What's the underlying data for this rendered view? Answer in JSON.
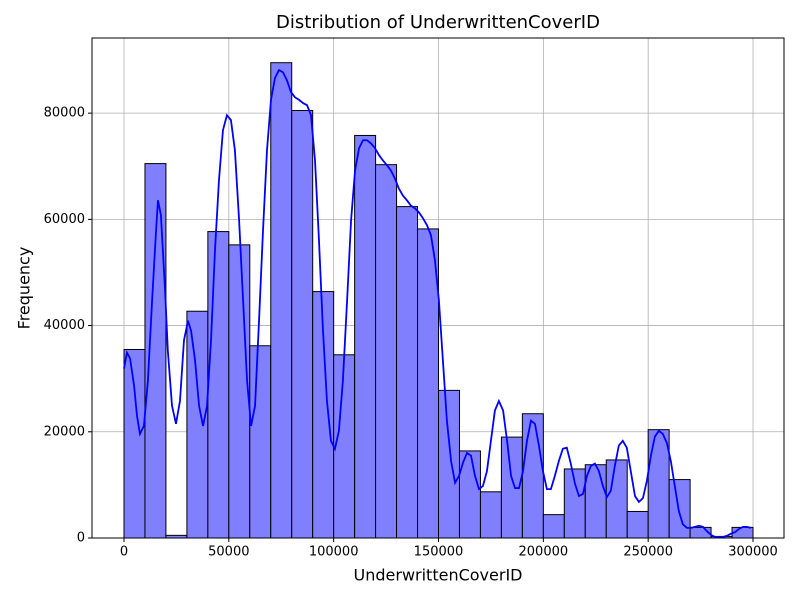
{
  "chart_data": {
    "type": "histogram",
    "title": "Distribution of UnderwrittenCoverID",
    "x_label": "UnderwrittenCoverID",
    "y_label": "Frequency",
    "bins": [
      0,
      10000,
      20000,
      30000,
      40000,
      50000,
      60000,
      70000,
      80000,
      90000,
      100000,
      110000,
      120000,
      130000,
      140000,
      150000,
      160000,
      170000,
      180000,
      190000,
      200000,
      210000,
      220000,
      230000,
      240000,
      250000,
      260000,
      270000,
      280000,
      290000,
      300000
    ],
    "counts": [
      35500,
      70500,
      500,
      42700,
      57700,
      55200,
      36200,
      89500,
      80500,
      46400,
      34500,
      75800,
      70300,
      62400,
      58200,
      27800,
      16400,
      8700,
      19000,
      23400,
      4400,
      13000,
      13800,
      14700,
      5000,
      20400,
      11000,
      2000,
      300,
      2000
    ],
    "color": "#8080ff",
    "edgecolor": "#000000",
    "kde": {
      "color": "#0000ff",
      "x": [
        0,
        1400,
        2900,
        4800,
        6200,
        7600,
        9500,
        11400,
        13400,
        15300,
        16200,
        17600,
        19600,
        20900,
        22900,
        24800,
        26700,
        28600,
        30500,
        32000,
        33900,
        35800,
        37700,
        39600,
        41500,
        43400,
        45300,
        47200,
        49100,
        51000,
        52900,
        54900,
        56800,
        58700,
        60600,
        62500,
        64400,
        66300,
        68200,
        70100,
        72000,
        73900,
        75800,
        77700,
        79600,
        81500,
        83500,
        85400,
        87300,
        89200,
        91100,
        93000,
        94900,
        96800,
        98700,
        100600,
        102500,
        104400,
        106400,
        108300,
        110200,
        112100,
        114000,
        115900,
        117800,
        119700,
        121600,
        123500,
        125400,
        127300,
        129200,
        131100,
        133000,
        134900,
        136800,
        138700,
        140700,
        142600,
        144500,
        146400,
        148300,
        150200,
        152100,
        154000,
        156000,
        157900,
        159800,
        161700,
        163600,
        165500,
        167400,
        169300,
        171200,
        173100,
        175000,
        176900,
        178800,
        180800,
        182700,
        184600,
        186500,
        188400,
        190300,
        192200,
        194100,
        196000,
        197900,
        199800,
        201700,
        203600,
        205500,
        207400,
        209300,
        211200,
        213100,
        215100,
        217000,
        218900,
        220800,
        222700,
        224600,
        226500,
        228400,
        230300,
        232200,
        234100,
        236000,
        237900,
        239800,
        241700,
        243700,
        245600,
        247500,
        249400,
        251300,
        253200,
        255100,
        257000,
        258900,
        260800,
        262700,
        264600,
        266500,
        268500,
        270400,
        272300,
        274200,
        276100,
        278000,
        279900,
        281800,
        283700,
        285600,
        287500,
        289400,
        291400,
        293300,
        295200,
        297100,
        299000
      ],
      "y": [
        31900,
        34900,
        33800,
        28700,
        23000,
        19600,
        21100,
        29600,
        44700,
        57900,
        63600,
        60800,
        46600,
        35300,
        24900,
        21500,
        25800,
        37200,
        40900,
        39000,
        33400,
        24900,
        21100,
        24900,
        37200,
        54200,
        67400,
        76800,
        79600,
        78700,
        73000,
        59800,
        44700,
        29600,
        21100,
        24900,
        40900,
        57900,
        73000,
        82500,
        86600,
        88100,
        87700,
        86200,
        84000,
        83000,
        82500,
        81900,
        81500,
        79600,
        71100,
        56000,
        39100,
        25800,
        18300,
        16800,
        20200,
        29600,
        44700,
        59800,
        69200,
        73400,
        74900,
        74900,
        74300,
        73400,
        72100,
        71100,
        70200,
        69200,
        67700,
        65800,
        64500,
        63600,
        62600,
        62100,
        61300,
        60200,
        58900,
        57000,
        52300,
        44700,
        33400,
        22100,
        14500,
        10400,
        11700,
        14200,
        16000,
        15500,
        11700,
        9200,
        9800,
        12600,
        18300,
        24000,
        25800,
        24000,
        18300,
        11700,
        9400,
        9400,
        12600,
        18300,
        22100,
        21500,
        17400,
        12600,
        9200,
        9200,
        11700,
        14500,
        16800,
        17000,
        14000,
        10200,
        7900,
        8300,
        11700,
        13600,
        14000,
        12600,
        9800,
        7700,
        8900,
        13600,
        17400,
        18300,
        17000,
        12600,
        7900,
        6800,
        7500,
        10800,
        15500,
        19100,
        20200,
        19600,
        17900,
        14500,
        9800,
        5100,
        2600,
        1900,
        1900,
        2100,
        2300,
        2100,
        1300,
        600,
        200,
        200,
        200,
        400,
        800,
        1100,
        1700,
        2100,
        2100,
        1900
      ]
    },
    "xlim": [
      -15260,
      314780
    ],
    "ylim": [
      0,
      94150
    ],
    "xticks": [
      0,
      50000,
      100000,
      150000,
      200000,
      250000,
      300000
    ],
    "yticks": [
      0,
      20000,
      40000,
      60000,
      80000
    ],
    "grid": true
  }
}
